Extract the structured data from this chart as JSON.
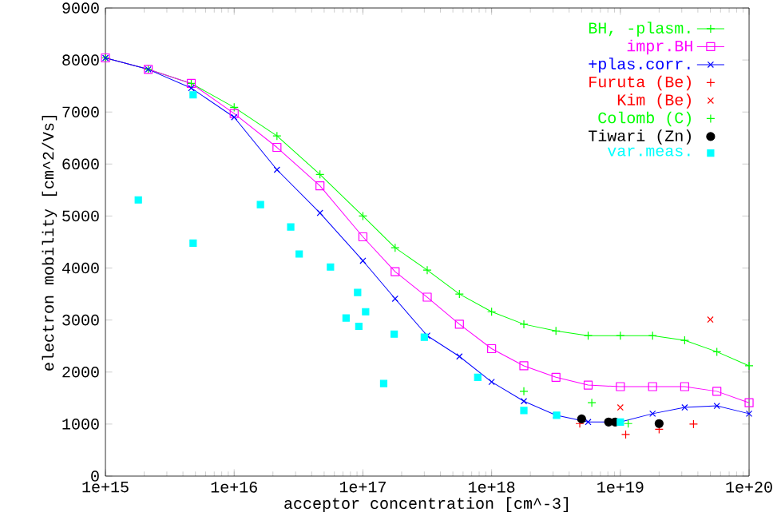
{
  "chart_data": {
    "type": "line",
    "xlabel": "acceptor concentration [cm^-3]",
    "ylabel": "electron mobility [cm^2/Vs]",
    "log": "x",
    "xlim": [
      1000000000000000.0,
      1e+20
    ],
    "ylim": [
      0,
      9000
    ],
    "xticks": [
      {
        "value": 1000000000000000.0,
        "label": "1e+15"
      },
      {
        "value": 1e+16,
        "label": "1e+16"
      },
      {
        "value": 1e+17,
        "label": "1e+17"
      },
      {
        "value": 1e+18,
        "label": "1e+18"
      },
      {
        "value": 1e+19,
        "label": "1e+19"
      },
      {
        "value": 1e+20,
        "label": "1e+20"
      }
    ],
    "yticks": [
      0,
      1000,
      2000,
      3000,
      4000,
      5000,
      6000,
      7000,
      8000,
      9000
    ],
    "legend": "top right",
    "grid": false,
    "series": [
      {
        "name": "BH, -plasm.",
        "marker": "plus",
        "color": "#00ff00",
        "x": [
          1000000000000000.0,
          2150000000000000.0,
          4640000000000000.0,
          1e+16,
          2.15e+16,
          4.64e+16,
          1e+17,
          1.78e+17,
          3.16e+17,
          5.62e+17,
          1e+18,
          1.78e+18,
          3.16e+18,
          5.62e+18,
          1e+19,
          1.78e+19,
          3.16e+19,
          5.62e+19,
          1e+20
        ],
        "values": [
          8040,
          7820,
          7550,
          7090,
          6540,
          5800,
          5000,
          4390,
          3960,
          3500,
          3160,
          2920,
          2790,
          2700,
          2700,
          2700,
          2610,
          2390,
          2120
        ]
      },
      {
        "name": "impr.BH",
        "marker": "square",
        "color": "#ff00ff",
        "x": [
          1000000000000000.0,
          2150000000000000.0,
          4640000000000000.0,
          1e+16,
          2.15e+16,
          4.64e+16,
          1e+17,
          1.78e+17,
          3.16e+17,
          5.62e+17,
          1e+18,
          1.78e+18,
          3.16e+18,
          5.62e+18,
          1e+19,
          1.78e+19,
          3.16e+19,
          5.62e+19,
          1e+20
        ],
        "values": [
          8040,
          7820,
          7550,
          6970,
          6320,
          5580,
          4600,
          3930,
          3440,
          2920,
          2450,
          2120,
          1900,
          1750,
          1720,
          1720,
          1720,
          1630,
          1410
        ]
      },
      {
        "name": "+plas.corr.",
        "marker": "cross",
        "color": "#0000ff",
        "x": [
          1000000000000000.0,
          2150000000000000.0,
          4640000000000000.0,
          1e+16,
          2.15e+16,
          4.64e+16,
          1e+17,
          1.78e+17,
          3.16e+17,
          5.62e+17,
          1e+18,
          1.78e+18,
          3.16e+18,
          5.62e+18,
          1e+19,
          1.78e+19,
          3.16e+19,
          5.62e+19,
          1e+20
        ],
        "values": [
          8040,
          7820,
          7460,
          6900,
          5890,
          5060,
          4140,
          3410,
          2700,
          2300,
          1810,
          1440,
          1170,
          1040,
          1040,
          1200,
          1320,
          1350,
          1200
        ]
      },
      {
        "name": "Furuta (Be)",
        "type": "scatter",
        "marker": "plus",
        "color": "#ff0000",
        "x": [
          4.84e+18,
          1.1e+19,
          2e+19,
          3.7e+19
        ],
        "values": [
          1010,
          800,
          900,
          1000
        ]
      },
      {
        "name": "Kim (Be)",
        "type": "scatter",
        "marker": "cross",
        "color": "#ff0000",
        "x": [
          1e+19,
          5e+19
        ],
        "values": [
          1320,
          3010
        ]
      },
      {
        "name": "Colomb (C)",
        "type": "scatter",
        "marker": "plus",
        "color": "#00ff00",
        "x": [
          1.78e+18,
          6e+18,
          1.15e+19
        ],
        "values": [
          1630,
          1410,
          1010
        ]
      },
      {
        "name": "Tiwari (Zn)",
        "type": "scatter",
        "marker": "circle",
        "color": "#000000",
        "x": [
          5e+18,
          8.1e+18,
          9.1e+18,
          2e+19
        ],
        "values": [
          1100,
          1040,
          1040,
          1010
        ]
      },
      {
        "name": "var.meas.",
        "type": "scatter",
        "marker": "square",
        "color": "#00ffff",
        "x": [
          1800000000000000.0,
          4800000000000000.0,
          4800000000000000.0,
          1.6e+16,
          2.75e+16,
          3.2e+16,
          5.6e+16,
          7.4e+16,
          9.1e+16,
          9.3e+16,
          1.05e+17,
          1.45e+17,
          1.75e+17,
          3e+17,
          7.8e+17,
          1.78e+18,
          3.2e+18,
          1e+19
        ],
        "values": [
          5310,
          7330,
          4480,
          5220,
          4790,
          4270,
          4020,
          3040,
          3530,
          2880,
          3160,
          1780,
          2730,
          2670,
          1900,
          1260,
          1170,
          1040
        ]
      }
    ]
  }
}
